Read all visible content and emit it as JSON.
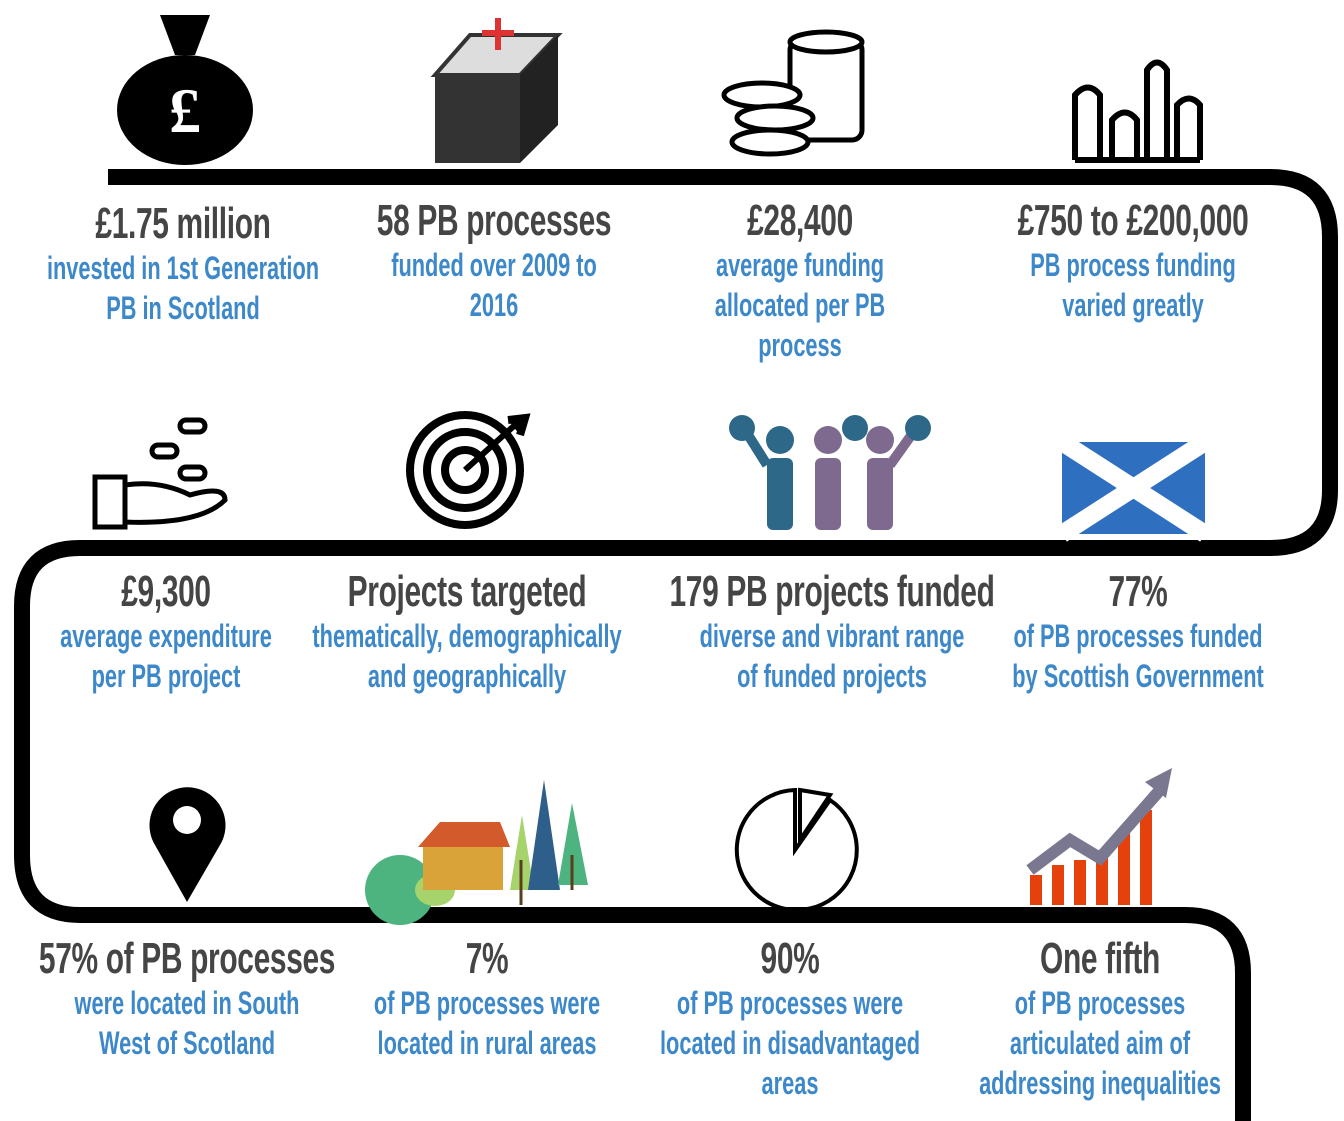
{
  "items": [
    {
      "headline": "£1.75 million",
      "desc": [
        "invested in 1st Generation",
        "PB in Scotland"
      ]
    },
    {
      "headline": "58 PB processes",
      "desc": [
        "funded over 2009 to",
        "2016"
      ]
    },
    {
      "headline": "£28,400",
      "desc": [
        "average funding",
        "allocated per PB",
        "process"
      ]
    },
    {
      "headline": "£750 to £200,000",
      "desc": [
        "PB process funding",
        "varied greatly"
      ]
    },
    {
      "headline": "£9,300",
      "desc": [
        "average expenditure",
        "per PB project"
      ]
    },
    {
      "headline": "Projects targeted",
      "desc": [
        "thematically, demographically",
        "and geographically"
      ]
    },
    {
      "headline": "179 PB projects funded",
      "desc": [
        "diverse and vibrant range",
        "of funded projects"
      ]
    },
    {
      "headline": "77%",
      "desc": [
        "of PB processes funded",
        "by Scottish Government"
      ]
    },
    {
      "headline": "57% of PB processes",
      "desc": [
        "were located in South",
        "West of Scotland"
      ]
    },
    {
      "headline": "7%",
      "desc": [
        "of PB processes were",
        "located in rural areas"
      ]
    },
    {
      "headline": "90%",
      "desc": [
        "of PB processes were",
        "located in disadvantaged",
        "areas"
      ]
    },
    {
      "headline": "One fifth",
      "desc": [
        "of PB processes",
        "articulated aim of",
        "addressing inequalities"
      ]
    }
  ]
}
